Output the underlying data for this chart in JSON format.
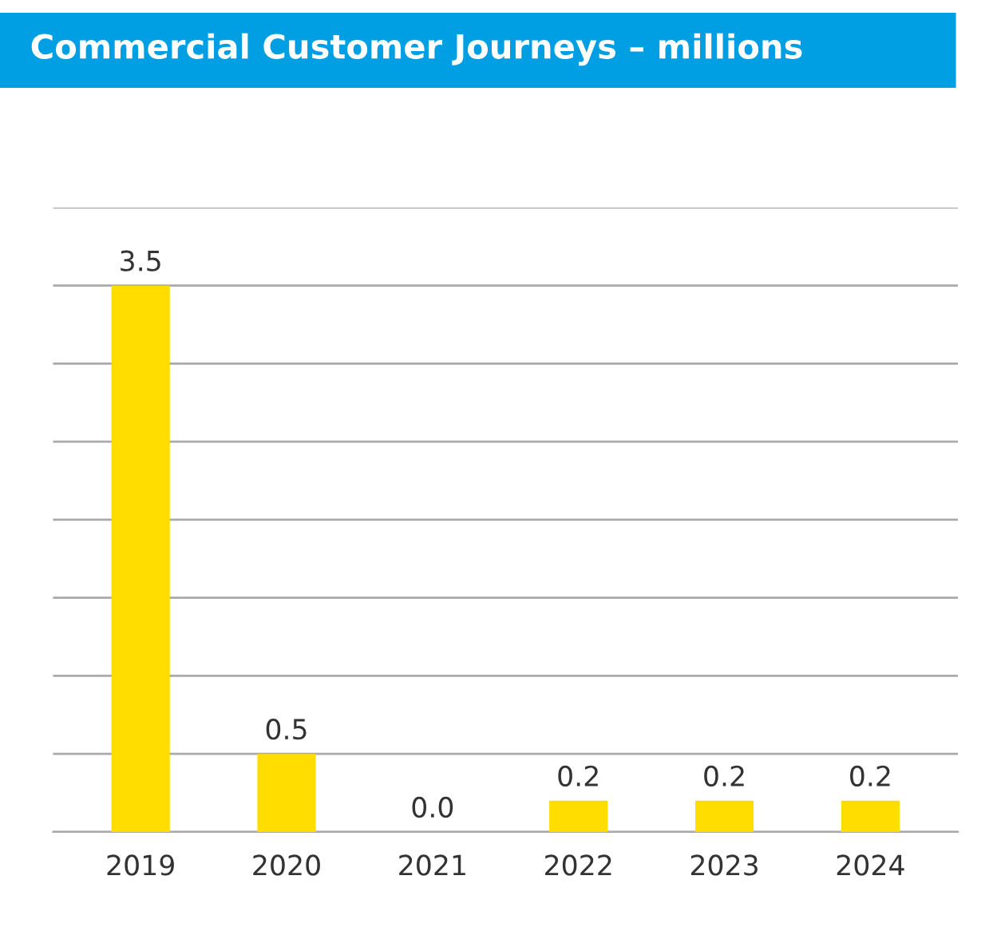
{
  "chart_data": {
    "type": "bar",
    "title": "Commercial Customer Journeys – millions",
    "categories": [
      "2019",
      "2020",
      "2021",
      "2022",
      "2023",
      "2024"
    ],
    "values": [
      3.5,
      0.5,
      0.0,
      0.2,
      0.2,
      0.2
    ],
    "color": "#ffdd00",
    "ylim": [
      0,
      4
    ],
    "yticks": [
      {
        "value": 0,
        "label": null
      },
      {
        "value": 0.5,
        "label": null
      },
      {
        "value": 1,
        "label": null
      },
      {
        "value": 1.5,
        "label": null
      },
      {
        "value": 2,
        "label": null
      },
      {
        "value": 2.5,
        "label": null
      },
      {
        "value": 3,
        "label": null
      },
      {
        "value": 3.5,
        "label": null
      },
      {
        "value": 4,
        "label": null
      }
    ],
    "value_labels": [
      "3.5",
      "0.5",
      "0.0",
      "0.2",
      "0.2",
      "0.2"
    ],
    "tick_labels": "x",
    "grid": "y",
    "legend": false
  }
}
